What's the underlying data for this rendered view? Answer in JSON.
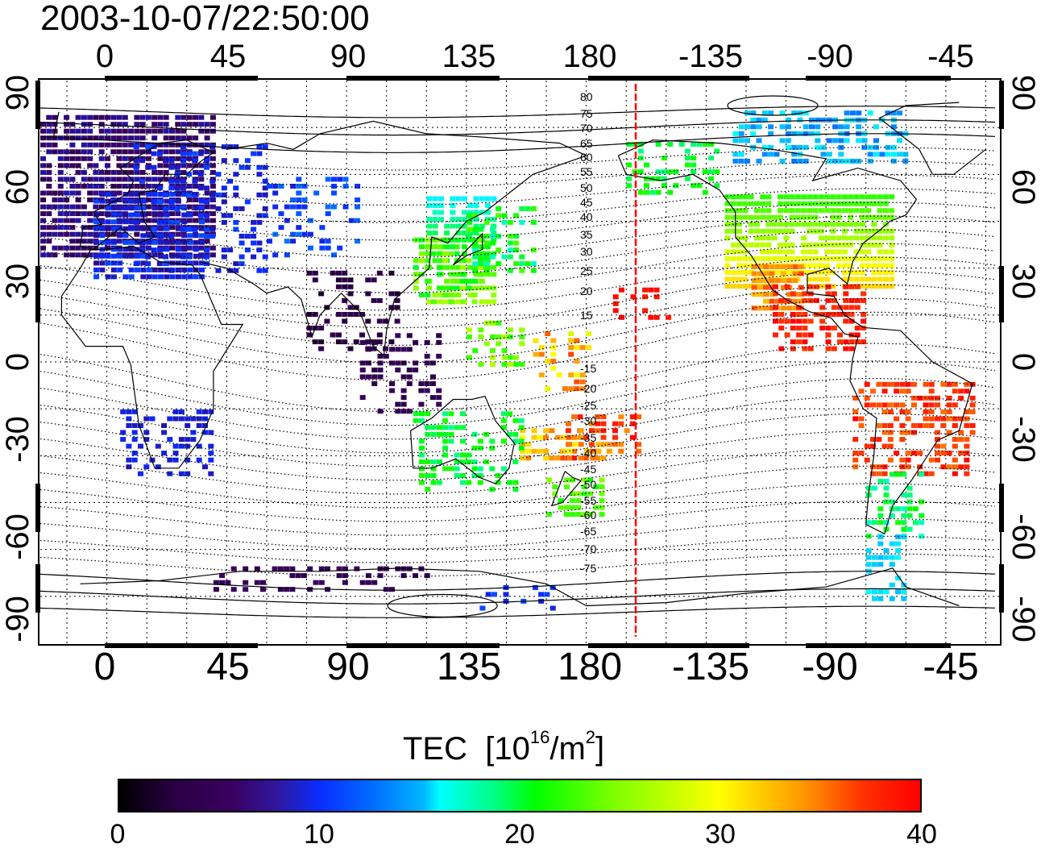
{
  "timestamp": "2003-10-07/22:50:00",
  "axis": {
    "longitude_ticks": [
      "0",
      "45",
      "90",
      "135",
      "180",
      "-135",
      "-90",
      "-45"
    ],
    "latitude_ticks": [
      "90",
      "60",
      "30",
      "0",
      "-30",
      "-60",
      "-90"
    ]
  },
  "colorbar": {
    "title": "TEC",
    "unit_prefix": "[10",
    "unit_exp": "16",
    "unit_mid": "/m",
    "unit_exp2": "2",
    "unit_suffix": "]",
    "ticks": [
      "0",
      "10",
      "20",
      "30",
      "40"
    ],
    "range": [
      0,
      40
    ],
    "colors": [
      "#000000",
      "#3a005f",
      "#0a2cff",
      "#00ffff",
      "#00ff00",
      "#ffff00",
      "#ff0000"
    ]
  },
  "contour_labels": [
    "80",
    "75",
    "70",
    "65",
    "60",
    "55",
    "50",
    "45",
    "40",
    "35",
    "30",
    "25",
    "20",
    "15",
    "-15",
    "-20",
    "-25",
    "-30",
    "-35",
    "-40",
    "-45",
    "-50",
    "-55",
    "-60",
    "-65",
    "-70",
    "-75"
  ],
  "terminator_color": "#ff0000"
}
